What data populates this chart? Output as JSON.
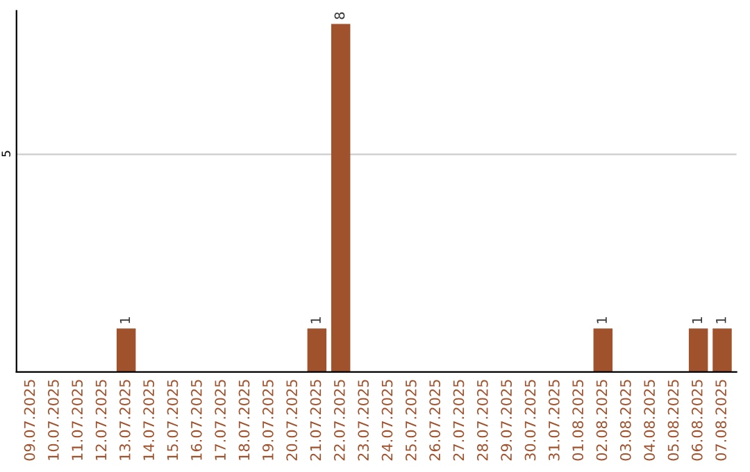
{
  "chart_data": {
    "type": "bar",
    "categories": [
      "09.07.2025",
      "10.07.2025",
      "11.07.2025",
      "12.07.2025",
      "13.07.2025",
      "14.07.2025",
      "15.07.2025",
      "16.07.2025",
      "17.07.2025",
      "18.07.2025",
      "19.07.2025",
      "20.07.2025",
      "21.07.2025",
      "22.07.2025",
      "23.07.2025",
      "24.07.2025",
      "25.07.2025",
      "26.07.2025",
      "27.07.2025",
      "28.07.2025",
      "29.07.2025",
      "30.07.2025",
      "31.07.2025",
      "01.08.2025",
      "02.08.2025",
      "03.08.2025",
      "04.08.2025",
      "05.08.2025",
      "06.08.2025",
      "07.08.2025"
    ],
    "values": [
      0,
      0,
      0,
      0,
      1,
      0,
      0,
      0,
      0,
      0,
      0,
      0,
      1,
      8,
      0,
      0,
      0,
      0,
      0,
      0,
      0,
      0,
      0,
      0,
      1,
      0,
      0,
      0,
      1,
      1
    ],
    "value_labels": [
      null,
      null,
      null,
      null,
      "1",
      null,
      null,
      null,
      null,
      null,
      null,
      null,
      "1",
      "8",
      null,
      null,
      null,
      null,
      null,
      null,
      null,
      null,
      null,
      null,
      "1",
      null,
      null,
      null,
      "1",
      "1"
    ],
    "color": "#a0522d",
    "ylim": [
      0,
      8.3
    ],
    "yticks": [
      5
    ],
    "grid": "y",
    "legend": false
  }
}
